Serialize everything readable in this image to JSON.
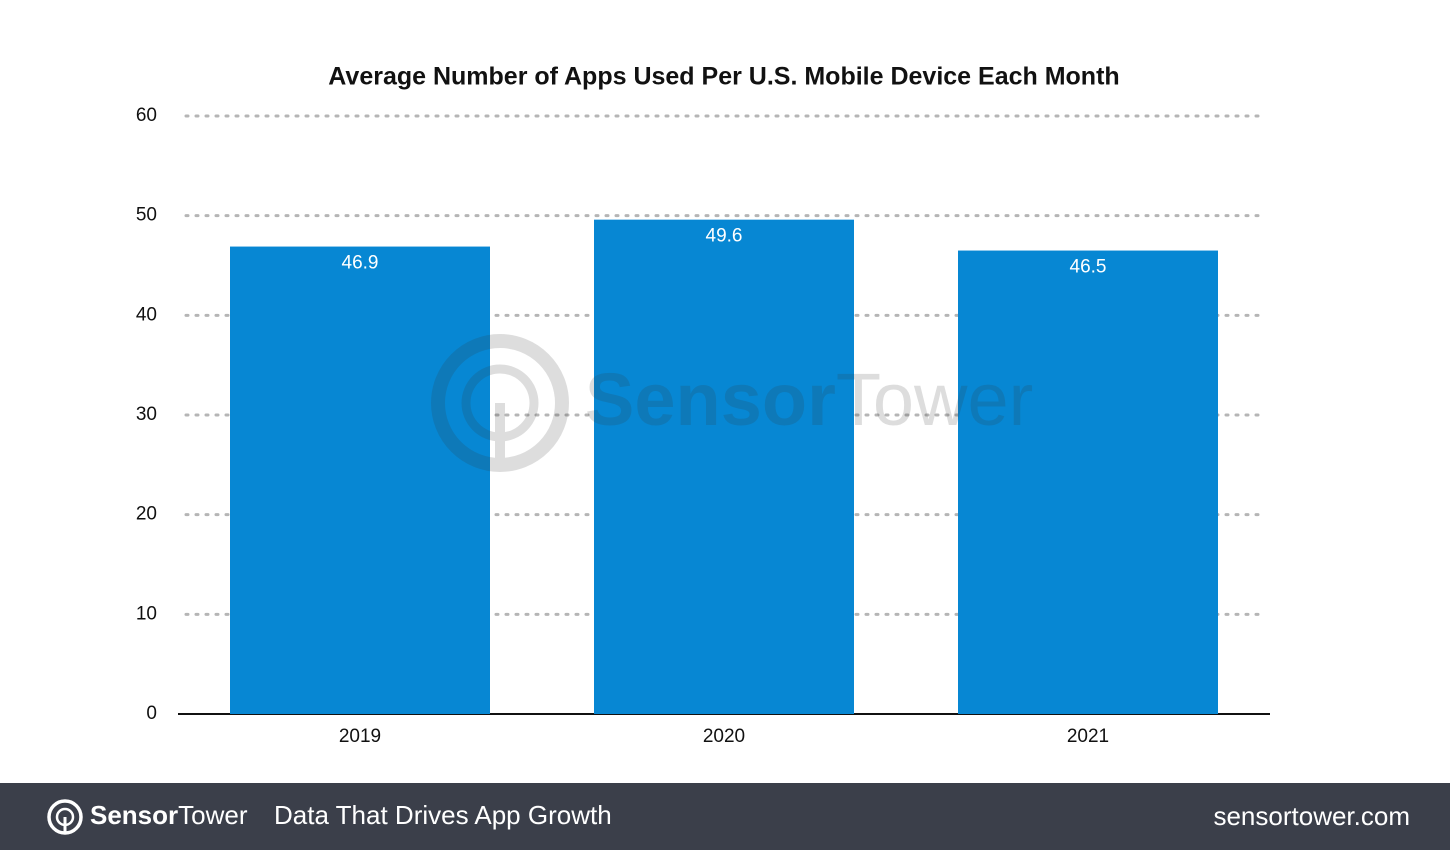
{
  "chart_data": {
    "type": "bar",
    "title": "Average Number of Apps Used Per U.S. Mobile Device Each Month",
    "categories": [
      "2019",
      "2020",
      "2021"
    ],
    "values": [
      46.9,
      49.6,
      46.5
    ],
    "color": "#0787d3",
    "ylim": [
      0,
      60
    ],
    "yticks": [
      0,
      10,
      20,
      30,
      40,
      50,
      60
    ],
    "grid": true
  },
  "brand": {
    "name_bold": "Sensor",
    "name_light": "Tower"
  },
  "footer": {
    "tagline": "Data That Drives App Growth",
    "website": "sensortower.com"
  }
}
